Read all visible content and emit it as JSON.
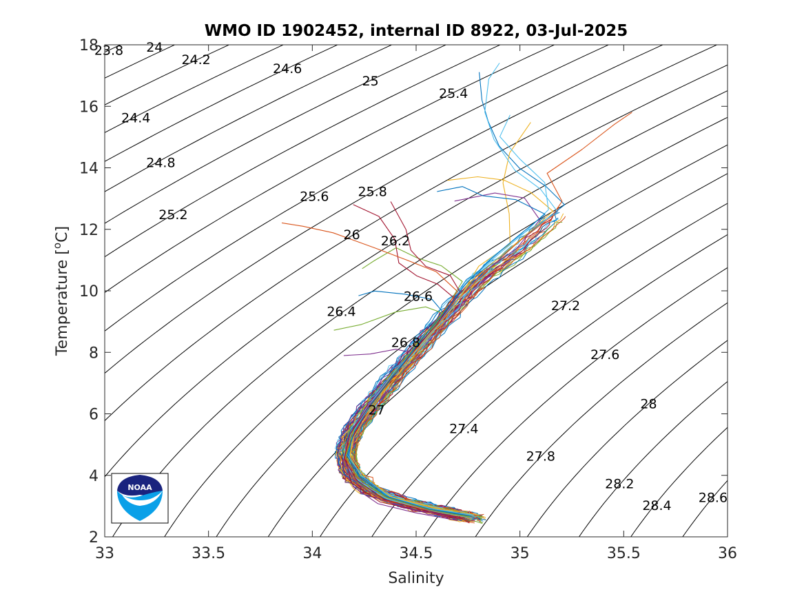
{
  "chart_data": {
    "type": "line",
    "title": "WMO ID 1902452, internal ID 8922, 03-Jul-2025",
    "xlabel": "Salinity",
    "ylabel_prefix": "Temperature [",
    "ylabel_sup": "o",
    "ylabel_suffix": "C]",
    "xlim": [
      33,
      36
    ],
    "ylim": [
      2,
      18
    ],
    "xticks": [
      "33",
      "33.5",
      "34",
      "34.5",
      "35",
      "35.5",
      "36"
    ],
    "yticks": [
      "2",
      "4",
      "6",
      "8",
      "10",
      "12",
      "14",
      "16",
      "18"
    ],
    "grid": false,
    "logo_text": "NOAA",
    "density_contours": [
      {
        "sigma": "23.8",
        "label_at": [
          33.02,
          17.8
        ]
      },
      {
        "sigma": "24",
        "label_at": [
          33.24,
          17.9
        ]
      },
      {
        "sigma": "24.2",
        "label_at": [
          33.44,
          17.5
        ]
      },
      {
        "sigma": "24.4",
        "label_at": [
          33.15,
          15.6
        ]
      },
      {
        "sigma": "24.6",
        "label_at": [
          33.88,
          17.2
        ]
      },
      {
        "sigma": "24.8",
        "label_at": [
          33.27,
          14.15
        ]
      },
      {
        "sigma": "25",
        "label_at": [
          34.28,
          16.8
        ]
      },
      {
        "sigma": "25.2",
        "label_at": [
          33.33,
          12.45
        ]
      },
      {
        "sigma": "25.4",
        "label_at": [
          34.68,
          16.4
        ]
      },
      {
        "sigma": "25.6",
        "label_at": [
          34.01,
          13.05
        ]
      },
      {
        "sigma": "25.8",
        "label_at": [
          34.29,
          13.2
        ]
      },
      {
        "sigma": "26",
        "label_at": [
          34.19,
          11.8
        ]
      },
      {
        "sigma": "26.2",
        "label_at": [
          34.4,
          11.6
        ]
      },
      {
        "sigma": "26.4",
        "label_at": [
          34.14,
          9.3
        ]
      },
      {
        "sigma": "26.6",
        "label_at": [
          34.51,
          9.8
        ]
      },
      {
        "sigma": "26.8",
        "label_at": [
          34.45,
          8.3
        ]
      },
      {
        "sigma": "27",
        "label_at": [
          34.31,
          6.1
        ]
      },
      {
        "sigma": "27.2",
        "label_at": [
          35.22,
          9.5
        ]
      },
      {
        "sigma": "27.4",
        "label_at": [
          34.73,
          5.5
        ]
      },
      {
        "sigma": "27.6",
        "label_at": [
          35.41,
          7.9
        ]
      },
      {
        "sigma": "27.8",
        "label_at": [
          35.1,
          4.6
        ]
      },
      {
        "sigma": "28",
        "label_at": [
          35.62,
          6.3
        ]
      },
      {
        "sigma": "28.2",
        "label_at": [
          35.48,
          3.7
        ]
      },
      {
        "sigma": "28.4",
        "label_at": [
          35.66,
          3.0
        ]
      },
      {
        "sigma": "28.6",
        "label_at": [
          35.93,
          3.25
        ]
      }
    ],
    "profile_colors": [
      "#0072BD",
      "#D95319",
      "#EDB120",
      "#7E2F8E",
      "#77AC30",
      "#4DBEEE",
      "#A2142F"
    ],
    "profile_count": 90,
    "mean_profile": {
      "salinity": [
        34.78,
        34.65,
        34.45,
        34.28,
        34.18,
        34.16,
        34.2,
        34.3,
        34.42,
        34.55,
        34.68,
        34.82,
        35.0,
        35.15,
        35.22
      ],
      "temperature": [
        2.6,
        2.8,
        3.1,
        3.5,
        4.1,
        4.8,
        5.5,
        6.4,
        7.4,
        8.4,
        9.4,
        10.4,
        11.3,
        12.2,
        12.8
      ]
    },
    "series": [
      {
        "path": [
          [
            34.79,
            2.65
          ],
          [
            34.6,
            2.85
          ],
          [
            34.4,
            3.1
          ],
          [
            34.26,
            3.5
          ],
          [
            34.17,
            4.1
          ],
          [
            34.15,
            4.8
          ],
          [
            34.19,
            5.5
          ],
          [
            34.3,
            6.4
          ],
          [
            34.4,
            7.4
          ],
          [
            34.52,
            8.4
          ],
          [
            34.64,
            9.4
          ],
          [
            34.75,
            10.3
          ],
          [
            34.92,
            11.2
          ],
          [
            35.08,
            12.1
          ],
          [
            35.22,
            12.8
          ],
          [
            35.12,
            13.4
          ],
          [
            35.0,
            14.0
          ],
          [
            34.9,
            14.7
          ],
          [
            34.85,
            15.5
          ],
          [
            34.82,
            16.2
          ],
          [
            34.8,
            17.1
          ]
        ]
      },
      {
        "path": [
          [
            34.76,
            2.6
          ],
          [
            34.55,
            2.9
          ],
          [
            34.35,
            3.2
          ],
          [
            34.22,
            3.7
          ],
          [
            34.16,
            4.3
          ],
          [
            34.16,
            5.0
          ],
          [
            34.22,
            5.8
          ],
          [
            34.32,
            6.7
          ],
          [
            34.45,
            7.7
          ],
          [
            34.58,
            8.7
          ],
          [
            34.7,
            9.7
          ],
          [
            34.85,
            10.7
          ],
          [
            35.0,
            11.6
          ],
          [
            35.15,
            12.4
          ],
          [
            35.2,
            12.9
          ],
          [
            35.13,
            13.8
          ],
          [
            35.3,
            14.6
          ],
          [
            35.46,
            15.4
          ],
          [
            35.54,
            15.8
          ]
        ]
      },
      {
        "path": [
          [
            34.8,
            2.7
          ],
          [
            34.58,
            2.95
          ],
          [
            34.38,
            3.3
          ],
          [
            34.24,
            3.9
          ],
          [
            34.18,
            4.6
          ],
          [
            34.2,
            5.3
          ],
          [
            34.28,
            6.1
          ],
          [
            34.38,
            7.0
          ],
          [
            34.5,
            8.0
          ],
          [
            34.62,
            9.0
          ],
          [
            34.72,
            9.9
          ],
          [
            34.8,
            10.8
          ],
          [
            34.95,
            11.5
          ],
          [
            34.95,
            12.5
          ],
          [
            34.92,
            13.5
          ],
          [
            34.95,
            14.5
          ],
          [
            35.05,
            15.5
          ]
        ]
      },
      {
        "path": [
          [
            34.7,
            2.55
          ],
          [
            34.5,
            2.8
          ],
          [
            34.32,
            3.1
          ],
          [
            34.2,
            3.6
          ],
          [
            34.15,
            4.4
          ],
          [
            34.17,
            5.2
          ],
          [
            34.24,
            6.0
          ],
          [
            34.35,
            6.9
          ],
          [
            34.47,
            7.9
          ],
          [
            34.6,
            8.9
          ],
          [
            34.7,
            9.8
          ],
          [
            34.82,
            10.6
          ],
          [
            34.98,
            11.4
          ],
          [
            35.1,
            12.3
          ],
          [
            35.02,
            13.0
          ],
          [
            34.88,
            13.2
          ],
          [
            34.68,
            12.9
          ]
        ]
      },
      {
        "path": [
          [
            34.74,
            2.7
          ],
          [
            34.52,
            2.95
          ],
          [
            34.34,
            3.35
          ],
          [
            34.22,
            4.0
          ],
          [
            34.17,
            4.7
          ],
          [
            34.21,
            5.6
          ],
          [
            34.3,
            6.5
          ],
          [
            34.42,
            7.5
          ],
          [
            34.55,
            8.5
          ],
          [
            34.65,
            9.5
          ],
          [
            34.72,
            10.3
          ],
          [
            34.62,
            10.8
          ],
          [
            34.5,
            11.1
          ],
          [
            34.4,
            11.4
          ],
          [
            34.3,
            11.0
          ],
          [
            34.24,
            10.7
          ]
        ]
      },
      {
        "path": [
          [
            34.78,
            2.62
          ],
          [
            34.56,
            2.88
          ],
          [
            34.36,
            3.25
          ],
          [
            34.21,
            3.85
          ],
          [
            34.15,
            4.55
          ],
          [
            34.18,
            5.35
          ],
          [
            34.27,
            6.25
          ],
          [
            34.39,
            7.25
          ],
          [
            34.53,
            8.25
          ],
          [
            34.66,
            9.3
          ],
          [
            34.75,
            10.2
          ],
          [
            34.85,
            11.0
          ],
          [
            35.0,
            11.8
          ],
          [
            35.18,
            12.55
          ],
          [
            35.1,
            13.3
          ],
          [
            34.98,
            13.9
          ],
          [
            34.88,
            14.9
          ],
          [
            34.83,
            15.8
          ],
          [
            34.85,
            16.9
          ],
          [
            34.9,
            17.4
          ]
        ]
      },
      {
        "path": [
          [
            34.73,
            2.58
          ],
          [
            34.53,
            2.83
          ],
          [
            34.33,
            3.15
          ],
          [
            34.19,
            3.75
          ],
          [
            34.16,
            4.5
          ],
          [
            34.19,
            5.25
          ],
          [
            34.26,
            6.05
          ],
          [
            34.36,
            6.95
          ],
          [
            34.48,
            7.95
          ],
          [
            34.6,
            8.95
          ],
          [
            34.68,
            9.75
          ],
          [
            34.6,
            10.2
          ],
          [
            34.5,
            10.5
          ],
          [
            34.42,
            10.9
          ],
          [
            34.4,
            11.7
          ],
          [
            34.32,
            12.4
          ],
          [
            34.2,
            12.8
          ]
        ]
      },
      {
        "path": [
          [
            34.77,
            2.66
          ],
          [
            34.57,
            2.92
          ],
          [
            34.37,
            3.3
          ],
          [
            34.23,
            3.95
          ],
          [
            34.17,
            4.65
          ],
          [
            34.2,
            5.45
          ],
          [
            34.29,
            6.35
          ],
          [
            34.4,
            7.35
          ],
          [
            34.52,
            8.35
          ],
          [
            34.63,
            9.35
          ],
          [
            34.58,
            9.7
          ],
          [
            34.45,
            9.9
          ],
          [
            34.3,
            10.0
          ],
          [
            34.22,
            9.85
          ]
        ]
      },
      {
        "path": [
          [
            34.75,
            2.64
          ],
          [
            34.55,
            2.9
          ],
          [
            34.35,
            3.28
          ],
          [
            34.22,
            3.9
          ],
          [
            34.16,
            4.6
          ],
          [
            34.19,
            5.4
          ],
          [
            34.27,
            6.2
          ],
          [
            34.38,
            7.2
          ],
          [
            34.5,
            8.2
          ],
          [
            34.62,
            9.2
          ],
          [
            34.7,
            10.0
          ],
          [
            34.6,
            10.6
          ],
          [
            34.45,
            11.0
          ],
          [
            34.3,
            11.4
          ],
          [
            34.1,
            11.9
          ],
          [
            33.95,
            12.1
          ],
          [
            33.85,
            12.2
          ]
        ]
      },
      {
        "path": [
          [
            34.79,
            2.68
          ],
          [
            34.58,
            2.94
          ],
          [
            34.38,
            3.32
          ],
          [
            34.25,
            3.98
          ],
          [
            34.18,
            4.68
          ],
          [
            34.2,
            5.48
          ],
          [
            34.3,
            6.38
          ],
          [
            34.41,
            7.38
          ],
          [
            34.54,
            8.38
          ],
          [
            34.67,
            9.38
          ],
          [
            34.76,
            10.28
          ],
          [
            34.9,
            11.1
          ],
          [
            35.05,
            11.9
          ],
          [
            35.16,
            12.6
          ],
          [
            35.05,
            13.2
          ],
          [
            34.92,
            13.6
          ],
          [
            34.8,
            13.7
          ],
          [
            34.65,
            13.6
          ]
        ]
      },
      {
        "path": [
          [
            34.72,
            2.6
          ],
          [
            34.52,
            2.86
          ],
          [
            34.33,
            3.2
          ],
          [
            34.2,
            3.8
          ],
          [
            34.15,
            4.52
          ],
          [
            34.18,
            5.3
          ],
          [
            34.25,
            6.1
          ],
          [
            34.35,
            7.0
          ],
          [
            34.47,
            8.0
          ],
          [
            34.4,
            8.1
          ],
          [
            34.28,
            7.95
          ],
          [
            34.15,
            7.9
          ]
        ]
      },
      {
        "path": [
          [
            34.76,
            2.63
          ],
          [
            34.56,
            2.89
          ],
          [
            34.36,
            3.27
          ],
          [
            34.22,
            3.88
          ],
          [
            34.16,
            4.58
          ],
          [
            34.19,
            5.38
          ],
          [
            34.28,
            6.28
          ],
          [
            34.39,
            7.28
          ],
          [
            34.51,
            8.28
          ],
          [
            34.63,
            9.28
          ],
          [
            34.55,
            9.5
          ],
          [
            34.4,
            9.3
          ],
          [
            34.24,
            8.9
          ],
          [
            34.1,
            8.7
          ]
        ]
      },
      {
        "path": [
          [
            34.78,
            2.67
          ],
          [
            34.57,
            2.93
          ],
          [
            34.37,
            3.31
          ],
          [
            34.24,
            3.96
          ],
          [
            34.17,
            4.66
          ],
          [
            34.2,
            5.46
          ],
          [
            34.29,
            6.36
          ],
          [
            34.4,
            7.36
          ],
          [
            34.53,
            8.36
          ],
          [
            34.65,
            9.36
          ],
          [
            34.74,
            10.26
          ],
          [
            34.88,
            11.1
          ],
          [
            35.02,
            11.9
          ],
          [
            35.14,
            12.65
          ],
          [
            35.12,
            13.5
          ],
          [
            35.0,
            14.3
          ],
          [
            34.9,
            15.0
          ],
          [
            34.95,
            15.7
          ]
        ]
      },
      {
        "path": [
          [
            34.74,
            2.61
          ],
          [
            34.54,
            2.87
          ],
          [
            34.34,
            3.23
          ],
          [
            34.21,
            3.83
          ],
          [
            34.15,
            4.53
          ],
          [
            34.18,
            5.33
          ],
          [
            34.26,
            6.13
          ],
          [
            34.37,
            7.03
          ],
          [
            34.49,
            8.03
          ],
          [
            34.61,
            9.03
          ],
          [
            34.71,
            9.93
          ],
          [
            34.66,
            10.5
          ],
          [
            34.55,
            10.8
          ],
          [
            34.48,
            11.3
          ],
          [
            34.45,
            12.0
          ],
          [
            34.38,
            12.9
          ]
        ]
      },
      {
        "path": [
          [
            34.77,
            2.65
          ],
          [
            34.56,
            2.91
          ],
          [
            34.36,
            3.29
          ],
          [
            34.23,
            3.92
          ],
          [
            34.17,
            4.62
          ],
          [
            34.2,
            5.42
          ],
          [
            34.28,
            6.32
          ],
          [
            34.4,
            7.32
          ],
          [
            34.52,
            8.32
          ],
          [
            34.64,
            9.32
          ],
          [
            34.74,
            10.22
          ],
          [
            34.86,
            11.0
          ],
          [
            35.0,
            11.8
          ],
          [
            35.12,
            12.5
          ],
          [
            34.98,
            12.95
          ],
          [
            34.82,
            13.1
          ],
          [
            34.72,
            13.4
          ],
          [
            34.6,
            13.25
          ]
        ]
      }
    ]
  }
}
